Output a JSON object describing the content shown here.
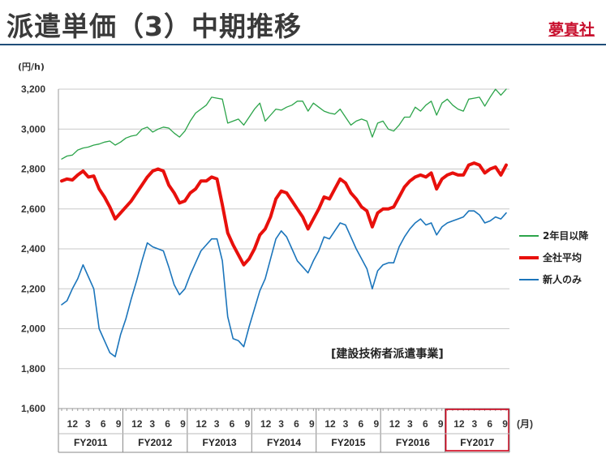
{
  "header": {
    "title": "派遣単価（3）中期推移",
    "brand": "夢真社"
  },
  "chart_data": {
    "type": "line",
    "y_unit_label": "(円/h)",
    "ylim": [
      1600,
      3200
    ],
    "yticks": [
      "3,200",
      "3,000",
      "2,800",
      "2,600",
      "2,400",
      "2,200",
      "2,000",
      "1,800",
      "1,600"
    ],
    "month_ticks": [
      "12",
      "3",
      "6",
      "9"
    ],
    "month_unit_label": "(月)",
    "fiscal_years": [
      "FY2011",
      "FY2012",
      "FY2013",
      "FY2014",
      "FY2015",
      "FY2016",
      "FY2017"
    ],
    "highlight_year": "FY2017",
    "annotation": "[建設技術者派遣事業]",
    "grid": true,
    "legend_position": "right",
    "x_start": "2010-11",
    "series": [
      {
        "name": "2年目以降",
        "color": "#2ca44a",
        "width": 1.3,
        "values": [
          2850,
          2865,
          2870,
          2895,
          2905,
          2910,
          2920,
          2925,
          2935,
          2940,
          2920,
          2935,
          2955,
          2965,
          2970,
          3000,
          3010,
          2985,
          3000,
          3010,
          3005,
          2980,
          2960,
          2990,
          3040,
          3080,
          3100,
          3120,
          3160,
          3155,
          3150,
          3030,
          3040,
          3050,
          3020,
          3060,
          3100,
          3130,
          3040,
          3070,
          3100,
          3095,
          3110,
          3120,
          3140,
          3140,
          3090,
          3130,
          3110,
          3090,
          3080,
          3075,
          3100,
          3060,
          3020,
          3040,
          3050,
          3040,
          2960,
          3030,
          3040,
          3000,
          2990,
          3020,
          3060,
          3060,
          3110,
          3090,
          3120,
          3140,
          3070,
          3130,
          3150,
          3120,
          3100,
          3090,
          3150,
          3155,
          3160,
          3115,
          3160,
          3200,
          3170,
          3200
        ]
      },
      {
        "name": "全社平均",
        "color": "#e8100c",
        "width": 4,
        "values": [
          2740,
          2750,
          2745,
          2770,
          2790,
          2760,
          2765,
          2700,
          2660,
          2610,
          2550,
          2580,
          2610,
          2640,
          2680,
          2720,
          2760,
          2790,
          2800,
          2790,
          2720,
          2680,
          2630,
          2640,
          2680,
          2700,
          2740,
          2740,
          2760,
          2750,
          2620,
          2480,
          2420,
          2370,
          2320,
          2350,
          2400,
          2470,
          2500,
          2560,
          2650,
          2690,
          2680,
          2640,
          2600,
          2560,
          2500,
          2550,
          2600,
          2660,
          2650,
          2700,
          2750,
          2730,
          2680,
          2650,
          2610,
          2590,
          2510,
          2580,
          2600,
          2600,
          2610,
          2660,
          2710,
          2740,
          2760,
          2770,
          2760,
          2780,
          2700,
          2750,
          2770,
          2780,
          2770,
          2770,
          2820,
          2830,
          2820,
          2780,
          2800,
          2810,
          2770,
          2820
        ]
      },
      {
        "name": "新人のみ",
        "color": "#1b75bb",
        "width": 1.6,
        "values": [
          2120,
          2140,
          2200,
          2250,
          2320,
          2260,
          2200,
          2000,
          1940,
          1880,
          1860,
          1970,
          2050,
          2150,
          2240,
          2340,
          2430,
          2410,
          2400,
          2390,
          2310,
          2220,
          2170,
          2200,
          2270,
          2330,
          2390,
          2420,
          2450,
          2450,
          2340,
          2060,
          1950,
          1940,
          1910,
          2010,
          2100,
          2190,
          2250,
          2350,
          2450,
          2490,
          2460,
          2400,
          2340,
          2310,
          2280,
          2340,
          2390,
          2460,
          2450,
          2490,
          2530,
          2520,
          2460,
          2400,
          2350,
          2300,
          2200,
          2290,
          2320,
          2330,
          2330,
          2410,
          2460,
          2500,
          2530,
          2550,
          2520,
          2530,
          2470,
          2510,
          2530,
          2540,
          2550,
          2560,
          2590,
          2590,
          2570,
          2530,
          2540,
          2560,
          2550,
          2580
        ]
      }
    ]
  }
}
